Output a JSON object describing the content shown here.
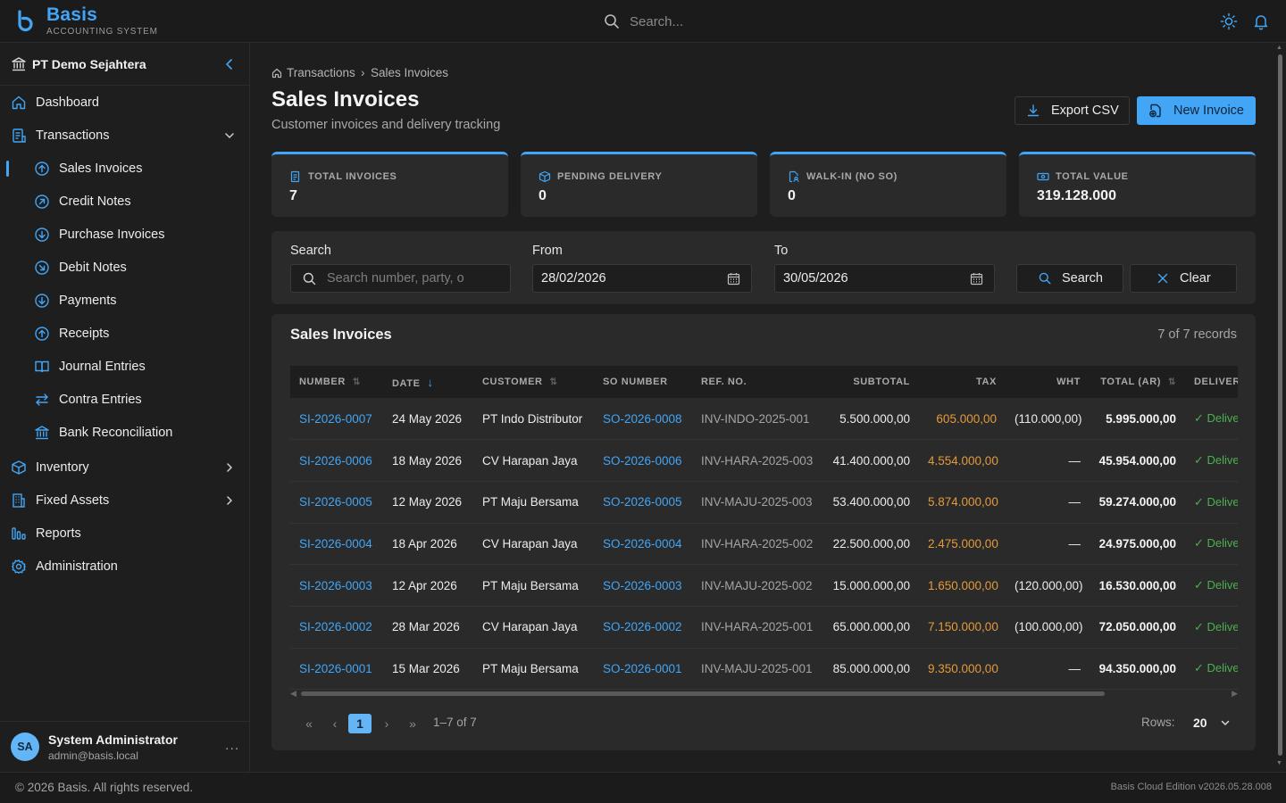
{
  "app": {
    "name": "Basis",
    "subtitle": "ACCOUNTING SYSTEM",
    "accent": "#42a5f5"
  },
  "topbar": {
    "search_placeholder": "Search..."
  },
  "sidebar": {
    "company": "PT Demo Sejahtera",
    "items": [
      {
        "label": "Dashboard",
        "icon": "home-icon"
      },
      {
        "label": "Transactions",
        "icon": "document-icon",
        "expanded": true,
        "children": [
          {
            "label": "Sales Invoices",
            "icon": "arrow-up-circle-icon",
            "active": true
          },
          {
            "label": "Credit Notes",
            "icon": "arrow-up-right-circle-icon"
          },
          {
            "label": "Purchase Invoices",
            "icon": "arrow-down-circle-icon"
          },
          {
            "label": "Debit Notes",
            "icon": "arrow-down-right-circle-icon"
          },
          {
            "label": "Payments",
            "icon": "arrow-down-circle-icon"
          },
          {
            "label": "Receipts",
            "icon": "arrow-up-circle-icon"
          },
          {
            "label": "Journal Entries",
            "icon": "book-icon"
          },
          {
            "label": "Contra Entries",
            "icon": "swap-icon"
          },
          {
            "label": "Bank Reconciliation",
            "icon": "bank-icon"
          }
        ]
      },
      {
        "label": "Inventory",
        "icon": "box-icon"
      },
      {
        "label": "Fixed Assets",
        "icon": "building-icon"
      },
      {
        "label": "Reports",
        "icon": "bar-chart-icon"
      },
      {
        "label": "Administration",
        "icon": "gear-icon"
      }
    ],
    "user": {
      "initials": "SA",
      "name": "System Administrator",
      "email": "admin@basis.local",
      "more": "..."
    }
  },
  "breadcrumb": {
    "parent": "Transactions",
    "separator": "›",
    "current": "Sales Invoices"
  },
  "page": {
    "title": "Sales Invoices",
    "subtitle": "Customer invoices and delivery tracking",
    "export_label": "Export CSV",
    "new_label": "New Invoice"
  },
  "stats": [
    {
      "label": "TOTAL INVOICES",
      "value": "7",
      "icon": "document-icon"
    },
    {
      "label": "PENDING DELIVERY",
      "value": "0",
      "icon": "package-icon"
    },
    {
      "label": "WALK-IN (NO SO)",
      "value": "0",
      "icon": "file-user-icon"
    },
    {
      "label": "TOTAL VALUE",
      "value": "319.128.000",
      "icon": "banknote-icon"
    }
  ],
  "filters": {
    "search_label": "Search",
    "search_placeholder": "Search number, party, o",
    "from_label": "From",
    "from_value": "28/02/2026",
    "to_label": "To",
    "to_value": "30/05/2026",
    "search_button": "Search",
    "clear_button": "Clear"
  },
  "table": {
    "title": "Sales Invoices",
    "count_text": "7 of 7 records",
    "columns": [
      "NUMBER",
      "DATE",
      "CUSTOMER",
      "SO NUMBER",
      "REF. NO.",
      "SUBTOTAL",
      "TAX",
      "WHT",
      "TOTAL (AR)",
      "DELIVERY"
    ],
    "rows": [
      {
        "number": "SI-2026-0007",
        "date": "24 May 2026",
        "customer": "PT Indo Distributor",
        "so": "SO-2026-0008",
        "ref": "INV-INDO-2025-001",
        "subtotal": "5.500.000,00",
        "tax": "605.000,00",
        "wht": "(110.000,00)",
        "total": "5.995.000,00",
        "delivery": "✓ Delivered"
      },
      {
        "number": "SI-2026-0006",
        "date": "18 May 2026",
        "customer": "CV Harapan Jaya",
        "so": "SO-2026-0006",
        "ref": "INV-HARA-2025-003",
        "subtotal": "41.400.000,00",
        "tax": "4.554.000,00",
        "wht": "—",
        "total": "45.954.000,00",
        "delivery": "✓ Delivered"
      },
      {
        "number": "SI-2026-0005",
        "date": "12 May 2026",
        "customer": "PT Maju Bersama",
        "so": "SO-2026-0005",
        "ref": "INV-MAJU-2025-003",
        "subtotal": "53.400.000,00",
        "tax": "5.874.000,00",
        "wht": "—",
        "total": "59.274.000,00",
        "delivery": "✓ Delivered"
      },
      {
        "number": "SI-2026-0004",
        "date": "18 Apr 2026",
        "customer": "CV Harapan Jaya",
        "so": "SO-2026-0004",
        "ref": "INV-HARA-2025-002",
        "subtotal": "22.500.000,00",
        "tax": "2.475.000,00",
        "wht": "—",
        "total": "24.975.000,00",
        "delivery": "✓ Delivered"
      },
      {
        "number": "SI-2026-0003",
        "date": "12 Apr 2026",
        "customer": "PT Maju Bersama",
        "so": "SO-2026-0003",
        "ref": "INV-MAJU-2025-002",
        "subtotal": "15.000.000,00",
        "tax": "1.650.000,00",
        "wht": "(120.000,00)",
        "total": "16.530.000,00",
        "delivery": "✓ Delivered"
      },
      {
        "number": "SI-2026-0002",
        "date": "28 Mar 2026",
        "customer": "CV Harapan Jaya",
        "so": "SO-2026-0002",
        "ref": "INV-HARA-2025-001",
        "subtotal": "65.000.000,00",
        "tax": "7.150.000,00",
        "wht": "(100.000,00)",
        "total": "72.050.000,00",
        "delivery": "✓ Delivered"
      },
      {
        "number": "SI-2026-0001",
        "date": "15 Mar 2026",
        "customer": "PT Maju Bersama",
        "so": "SO-2026-0001",
        "ref": "INV-MAJU-2025-001",
        "subtotal": "85.000.000,00",
        "tax": "9.350.000,00",
        "wht": "—",
        "total": "94.350.000,00",
        "delivery": "✓ Delivered"
      }
    ]
  },
  "pagination": {
    "first": "«",
    "prev": "‹",
    "current": "1",
    "next": "›",
    "last": "»",
    "range": "1–7 of 7",
    "rows_label": "Rows:",
    "rows_value": "20"
  },
  "footer": {
    "copyright": "© 2026 Basis. All rights reserved.",
    "version": "Basis Cloud Edition v2026.05.28.008"
  }
}
